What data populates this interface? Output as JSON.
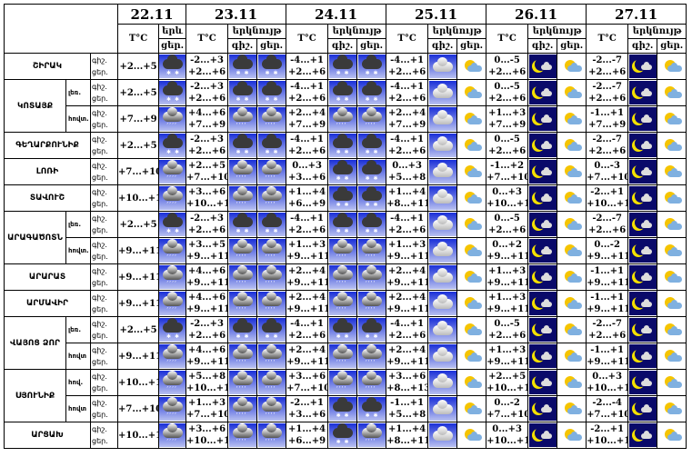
{
  "header": {
    "dates": [
      "22.11",
      "23.11",
      "24.11",
      "25.11",
      "26.11",
      "27.11"
    ],
    "temp_label": "T°C",
    "sky_label": "երկնույթ",
    "sky_label_short": "երև",
    "night": "գիշ.",
    "day": "ցեր."
  },
  "row_labels": {
    "night": "գիշ.",
    "day": "ցեր."
  },
  "regions": [
    {
      "name": "ՇԻՐԱԿ",
      "rows": [
        {
          "sub": "",
          "t22": "+2...+5",
          "i22": "snow",
          "days": [
            [
              "-2...+3",
              "+2...+6",
              "snow",
              "snow"
            ],
            [
              "-4...+1",
              "+2...+6",
              "snow",
              "snow"
            ],
            [
              "-4...+1",
              "+2...+6",
              "cloudy",
              "partly"
            ],
            [
              "0...-5",
              "+2...+6",
              "night",
              "partly"
            ],
            [
              "-2...-7",
              "+2...+6",
              "night",
              "partly"
            ]
          ]
        }
      ]
    },
    {
      "name": "ԿՈՏԱՅՔ",
      "rows": [
        {
          "sub": "լեռ.",
          "t22": "+2...+5",
          "i22": "snow",
          "days": [
            [
              "-2...+3",
              "+2...+6",
              "snow",
              "snow"
            ],
            [
              "-4...+1",
              "+2...+6",
              "snow",
              "snow"
            ],
            [
              "-4...+1",
              "+2...+6",
              "cloudy",
              "partly"
            ],
            [
              "0...-5",
              "+2...+6",
              "night",
              "partly"
            ],
            [
              "-2...-7",
              "+2...+6",
              "night",
              "partly"
            ]
          ]
        },
        {
          "sub": "հովտ.",
          "t22": "+7...+9",
          "i22": "rain",
          "days": [
            [
              "+4...+6",
              "+7...+9",
              "rain",
              "rain"
            ],
            [
              "+2...+4",
              "+7...+9",
              "rain",
              "rain"
            ],
            [
              "+2...+4",
              "+7...+9",
              "cloudy",
              "partly"
            ],
            [
              "+1...+3",
              "+7...+9",
              "night",
              "partly"
            ],
            [
              "-1...+1",
              "+7...+9",
              "night",
              "partly"
            ]
          ]
        }
      ]
    },
    {
      "name": "ԳԵՂԱՐՔՈՒՆԻՔ",
      "rows": [
        {
          "sub": "",
          "t22": "+2...+5",
          "i22": "snow",
          "days": [
            [
              "-2...+3",
              "+2...+6",
              "snow",
              "snow"
            ],
            [
              "-4...+1",
              "+2...+6",
              "snow",
              "snow"
            ],
            [
              "-4...+1",
              "+2...+6",
              "cloudy",
              "partly"
            ],
            [
              "0...-5",
              "+2...+6",
              "night",
              "partly"
            ],
            [
              "-2...-7",
              "+2...+6",
              "night",
              "partly"
            ]
          ]
        }
      ]
    },
    {
      "name": "ԼՈՌԻ",
      "rows": [
        {
          "sub": "",
          "t22": "+7...+10",
          "i22": "rain",
          "days": [
            [
              "+2...+5",
              "+7...+10",
              "rain",
              "rain"
            ],
            [
              "0...+3",
              "+3...+6",
              "snow",
              "snow"
            ],
            [
              "0...+3",
              "+5...+8",
              "cloudy",
              "partly"
            ],
            [
              "-1...+2",
              "+7...+10",
              "night",
              "partly"
            ],
            [
              "0...-3",
              "+7...+10",
              "night",
              "partly"
            ]
          ]
        }
      ]
    },
    {
      "name": "ՏԱՎՈՒՇ",
      "rows": [
        {
          "sub": "",
          "t22": "+10...+13",
          "i22": "rain",
          "days": [
            [
              "+3...+6",
              "+10...+13",
              "rain",
              "rain"
            ],
            [
              "+1...+4",
              "+6...+9",
              "snow",
              "snow"
            ],
            [
              "+1...+4",
              "+8...+11",
              "cloudy",
              "partly"
            ],
            [
              "0...+3",
              "+10...+13",
              "night",
              "partly"
            ],
            [
              "-2...+1",
              "+10...+13",
              "night",
              "partly"
            ]
          ]
        }
      ]
    },
    {
      "name": "ԱՐԱԳԱԾՈՏՆ",
      "rows": [
        {
          "sub": "լեռ.",
          "t22": "+2...+5",
          "i22": "snow",
          "days": [
            [
              "-2...+3",
              "+2...+6",
              "snow",
              "snow"
            ],
            [
              "-4...+1",
              "+2...+6",
              "snow",
              "snow"
            ],
            [
              "-4...+1",
              "+2...+6",
              "cloudy",
              "partly"
            ],
            [
              "0...-5",
              "+2...+6",
              "night",
              "partly"
            ],
            [
              "-2...-7",
              "+2...+6",
              "night",
              "partly"
            ]
          ]
        },
        {
          "sub": "հովտ.",
          "t22": "+9...+11",
          "i22": "rain",
          "days": [
            [
              "+3...+5",
              "+9...+11",
              "rain",
              "rain"
            ],
            [
              "+1...+3",
              "+9...+11",
              "rain",
              "rain"
            ],
            [
              "+1...+3",
              "+9...+11",
              "cloudy",
              "partly"
            ],
            [
              "0...+2",
              "+9...+11",
              "night",
              "partly"
            ],
            [
              "0...-2",
              "+9...+11",
              "night",
              "partly"
            ]
          ]
        }
      ]
    },
    {
      "name": "ԱՐԱՐԱՏ",
      "rows": [
        {
          "sub": "",
          "t22": "+9...+11",
          "i22": "rain",
          "days": [
            [
              "+4...+6",
              "+9...+11",
              "rain",
              "rain"
            ],
            [
              "+2...+4",
              "+9...+11",
              "rain",
              "rain"
            ],
            [
              "+2...+4",
              "+9...+11",
              "cloudy",
              "partly"
            ],
            [
              "+1...+3",
              "+9...+11",
              "night",
              "partly"
            ],
            [
              "-1...+1",
              "+9...+11",
              "night",
              "partly"
            ]
          ]
        }
      ]
    },
    {
      "name": "ԱՐՄԱՎԻՐ",
      "rows": [
        {
          "sub": "",
          "t22": "+9...+11",
          "i22": "rain",
          "days": [
            [
              "+4...+6",
              "+9...+11",
              "rain",
              "rain"
            ],
            [
              "+2...+4",
              "+9...+11",
              "rain",
              "rain"
            ],
            [
              "+2...+4",
              "+9...+11",
              "cloudy",
              "partly"
            ],
            [
              "+1...+3",
              "+9...+11",
              "night",
              "partly"
            ],
            [
              "-1...+1",
              "+9...+11",
              "night",
              "partly"
            ]
          ]
        }
      ]
    },
    {
      "name": "ՎԱՅՈՑ ՁՈՐ",
      "rows": [
        {
          "sub": "լեռ.",
          "t22": "+2...+5",
          "i22": "snow",
          "days": [
            [
              "-2...+3",
              "+2...+6",
              "snow",
              "snow"
            ],
            [
              "-4...+1",
              "+2...+6",
              "snow",
              "snow"
            ],
            [
              "-4...+1",
              "+2...+6",
              "cloudy",
              "partly"
            ],
            [
              "0...-5",
              "+2...+6",
              "night",
              "partly"
            ],
            [
              "-2...-7",
              "+2...+6",
              "night",
              "partly"
            ]
          ]
        },
        {
          "sub": "հովտ",
          "t22": "+9...+11",
          "i22": "rain",
          "days": [
            [
              "+4...+6",
              "+9...+11",
              "rain",
              "rain"
            ],
            [
              "+2...+4",
              "+9...+11",
              "rain",
              "rain"
            ],
            [
              "+2...+4",
              "+9...+11",
              "cloudy",
              "partly"
            ],
            [
              "+1...+3",
              "+9...+11",
              "night",
              "partly"
            ],
            [
              "-1...+1",
              "+9...+11",
              "night",
              "partly"
            ]
          ]
        }
      ]
    },
    {
      "name": "ՍՅՈՒՆԻՔ",
      "rows": [
        {
          "sub": "հով.",
          "t22": "+10...+15",
          "i22": "rain",
          "days": [
            [
              "+5...+8",
              "+10...+15",
              "rain",
              "rain"
            ],
            [
              "+3...+6",
              "+7...+10",
              "rain",
              "rain"
            ],
            [
              "+3...+6",
              "+8...+13",
              "cloudy",
              "partly"
            ],
            [
              "+2...+5",
              "+10...+15",
              "night",
              "partly"
            ],
            [
              "0...+3",
              "+10...+15",
              "night",
              "partly"
            ]
          ]
        },
        {
          "sub": "հովտ",
          "t22": "+7...+10",
          "i22": "rain",
          "days": [
            [
              "+1...+3",
              "+7...+10",
              "rain",
              "rain"
            ],
            [
              "-2...+1",
              "+3...+6",
              "snow",
              "snow"
            ],
            [
              "-1...+1",
              "+5...+8",
              "cloudy",
              "partly"
            ],
            [
              "0...-2",
              "+7...+10",
              "night",
              "partly"
            ],
            [
              "-2...-4",
              "+7...+10",
              "night",
              "partly"
            ]
          ]
        }
      ]
    },
    {
      "name": "ԱՐՑԱԽ",
      "rows": [
        {
          "sub": "",
          "t22": "+10...+13",
          "i22": "rain",
          "days": [
            [
              "+3...+6",
              "+10...+13",
              "rain",
              "rain"
            ],
            [
              "+1...+4",
              "+6...+9",
              "snow",
              "rain"
            ],
            [
              "+1...+4",
              "+8...+11",
              "cloudy",
              "partly"
            ],
            [
              "0...+3",
              "+10...+13",
              "night",
              "partly"
            ],
            [
              "-2...+1",
              "+10...+13",
              "night",
              "partly"
            ]
          ]
        }
      ]
    }
  ]
}
